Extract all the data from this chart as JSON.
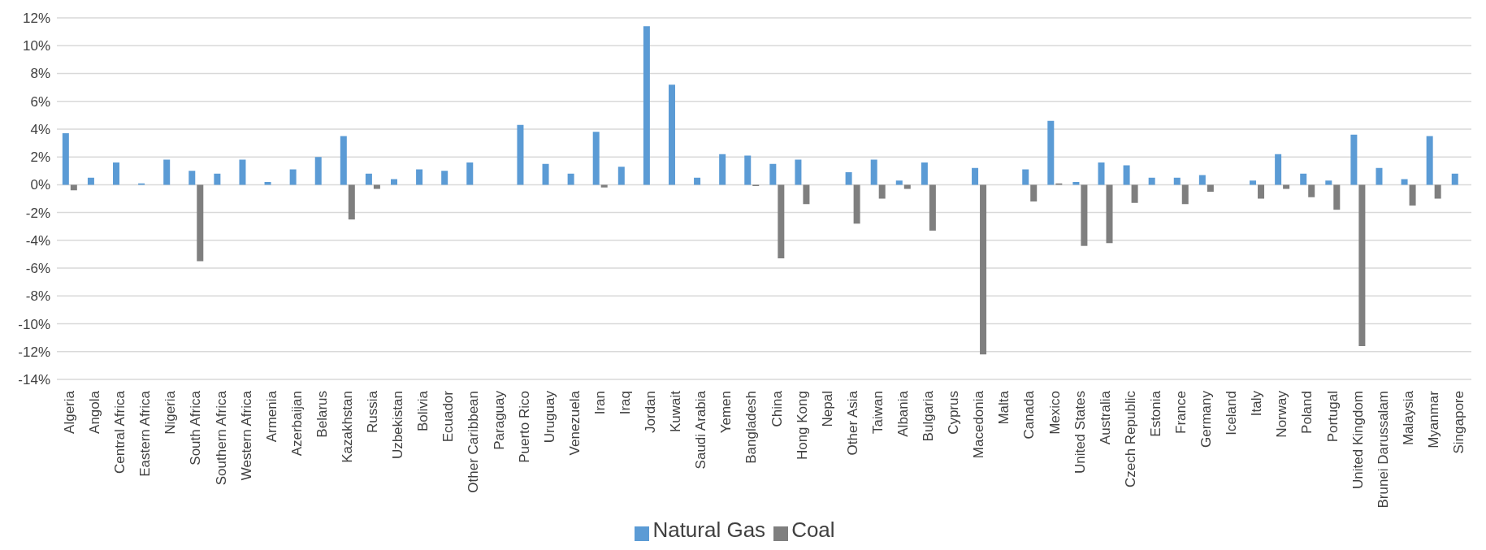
{
  "chart_data": {
    "type": "bar",
    "categories": [
      "Algeria",
      "Angola",
      "Central Africa",
      "Eastern Africa",
      "Nigeria",
      "South Africa",
      "Southern Africa",
      "Western Africa",
      "Armenia",
      "Azerbaijan",
      "Belarus",
      "Kazakhstan",
      "Russia",
      "Uzbekistan",
      "Bolivia",
      "Ecuador",
      "Other Caribbean",
      "Paraguay",
      "Puerto Rico",
      "Uruguay",
      "Venezuela",
      "Iran",
      "Iraq",
      "Jordan",
      "Kuwait",
      "Saudi Arabia",
      "Yemen",
      "Bangladesh",
      "China",
      "Hong Kong",
      "Nepal",
      "Other Asia",
      "Taiwan",
      "Albania",
      "Bulgaria",
      "Cyprus",
      "Macedonia",
      "Malta",
      "Canada",
      "Mexico",
      "United States",
      "Australia",
      "Czech Republic",
      "Estonia",
      "France",
      "Germany",
      "Iceland",
      "Italy",
      "Norway",
      "Poland",
      "Portugal",
      "United Kingdom",
      "Brunei Darussalam",
      "Malaysia",
      "Myanmar",
      "Singapore"
    ],
    "series": [
      {
        "name": "Natural Gas",
        "color": "#5b9bd5",
        "values": [
          3.7,
          0.5,
          1.6,
          0.1,
          1.8,
          1.0,
          0.8,
          1.8,
          0.2,
          1.1,
          2.0,
          3.5,
          0.8,
          0.4,
          1.1,
          1.0,
          1.6,
          null,
          4.3,
          1.5,
          0.8,
          3.8,
          1.3,
          11.4,
          7.2,
          0.5,
          2.2,
          2.1,
          1.5,
          1.8,
          null,
          0.9,
          1.8,
          0.3,
          1.6,
          null,
          1.2,
          null,
          1.1,
          4.6,
          0.2,
          1.6,
          1.4,
          0.5,
          0.5,
          0.7,
          null,
          0.3,
          2.2,
          0.8,
          0.3,
          3.6,
          1.2,
          0.4,
          3.5,
          0.8
        ]
      },
      {
        "name": "Coal",
        "color": "#7f7f7f",
        "values": [
          -0.4,
          null,
          null,
          null,
          null,
          -5.5,
          null,
          null,
          null,
          null,
          null,
          -2.5,
          -0.3,
          null,
          null,
          null,
          null,
          null,
          null,
          null,
          null,
          -0.2,
          null,
          null,
          null,
          null,
          null,
          -0.1,
          -5.3,
          -1.4,
          null,
          -2.8,
          -1.0,
          -0.3,
          -3.3,
          null,
          -12.2,
          null,
          -1.2,
          0.1,
          -4.4,
          -4.2,
          -1.3,
          null,
          -1.4,
          -0.5,
          null,
          -1.0,
          -0.3,
          -0.9,
          -1.8,
          -11.6,
          null,
          -1.5,
          -1.0,
          null
        ]
      }
    ],
    "ylim": [
      -14,
      12
    ],
    "yticks": [
      {
        "value": -14,
        "label": "-14%"
      },
      {
        "value": -12,
        "label": "-12%"
      },
      {
        "value": -10,
        "label": "-10%"
      },
      {
        "value": -8,
        "label": "-8%"
      },
      {
        "value": -6,
        "label": "-6%"
      },
      {
        "value": -4,
        "label": "-4%"
      },
      {
        "value": -2,
        "label": "-2%"
      },
      {
        "value": 0,
        "label": "0%"
      },
      {
        "value": 2,
        "label": "2%"
      },
      {
        "value": 4,
        "label": "4%"
      },
      {
        "value": 6,
        "label": "6%"
      },
      {
        "value": 8,
        "label": "8%"
      },
      {
        "value": 10,
        "label": "10%"
      },
      {
        "value": 12,
        "label": "12%"
      }
    ],
    "grid": "y",
    "legend": "bottom"
  }
}
